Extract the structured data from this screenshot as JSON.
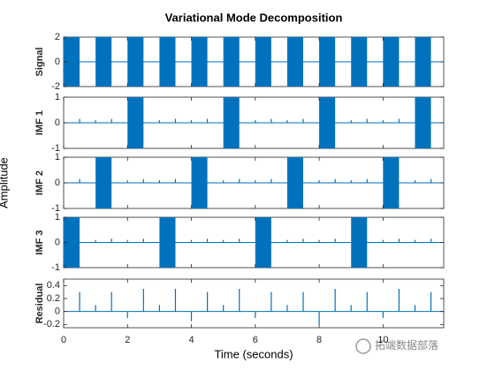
{
  "chart_data": {
    "type": "burst",
    "title": "Variational Mode Decomposition",
    "xlabel": "Time (seconds)",
    "ylabel": "Amplitude",
    "color": "#0072bd",
    "xlim": [
      0,
      11.9
    ],
    "xticks": [
      0,
      2,
      4,
      6,
      8,
      10
    ],
    "panels": [
      {
        "ylabel": "Signal",
        "ylim": [
          -2,
          2
        ],
        "yticks": [
          -2,
          0,
          2
        ],
        "bursts": [
          {
            "start": 0,
            "end": 0.5,
            "amplitude": 2
          },
          {
            "start": 1,
            "end": 1.5,
            "amplitude": 2
          },
          {
            "start": 2,
            "end": 2.5,
            "amplitude": 2
          },
          {
            "start": 3,
            "end": 3.5,
            "amplitude": 2
          },
          {
            "start": 4,
            "end": 4.5,
            "amplitude": 2
          },
          {
            "start": 5,
            "end": 5.5,
            "amplitude": 2
          },
          {
            "start": 6,
            "end": 6.5,
            "amplitude": 2
          },
          {
            "start": 7,
            "end": 7.5,
            "amplitude": 2
          },
          {
            "start": 8,
            "end": 8.5,
            "amplitude": 2
          },
          {
            "start": 9,
            "end": 9.5,
            "amplitude": 2
          },
          {
            "start": 10,
            "end": 10.5,
            "amplitude": 2
          },
          {
            "start": 11,
            "end": 11.5,
            "amplitude": 2
          }
        ]
      },
      {
        "ylabel": "IMF 1",
        "ylim": [
          -1,
          1
        ],
        "yticks": [
          -1,
          0,
          1
        ],
        "bursts": [
          {
            "start": 2,
            "end": 2.5,
            "amplitude": 1
          },
          {
            "start": 5,
            "end": 5.5,
            "amplitude": 1
          },
          {
            "start": 8,
            "end": 8.5,
            "amplitude": 1
          },
          {
            "start": 11,
            "end": 11.5,
            "amplitude": 1
          }
        ],
        "spikes": [
          {
            "x": 0.5,
            "value": 0.15
          },
          {
            "x": 1,
            "value": 0.1
          },
          {
            "x": 1.5,
            "value": 0.15
          },
          {
            "x": 3,
            "value": 0.1
          },
          {
            "x": 3.5,
            "value": 0.15
          },
          {
            "x": 4,
            "value": 0.1
          },
          {
            "x": 4.5,
            "value": 0.15
          },
          {
            "x": 6,
            "value": 0.1
          },
          {
            "x": 6.5,
            "value": 0.15
          },
          {
            "x": 7,
            "value": 0.1
          },
          {
            "x": 7.5,
            "value": 0.15
          },
          {
            "x": 9,
            "value": 0.1
          },
          {
            "x": 9.5,
            "value": 0.15
          },
          {
            "x": 10,
            "value": 0.1
          },
          {
            "x": 10.5,
            "value": 0.15
          }
        ]
      },
      {
        "ylabel": "IMF 2",
        "ylim": [
          -1,
          1
        ],
        "yticks": [
          -1,
          0,
          1
        ],
        "bursts": [
          {
            "start": 1,
            "end": 1.5,
            "amplitude": 1
          },
          {
            "start": 4,
            "end": 4.5,
            "amplitude": 1
          },
          {
            "start": 7,
            "end": 7.5,
            "amplitude": 1
          },
          {
            "start": 10,
            "end": 10.5,
            "amplitude": 1
          }
        ],
        "spikes": [
          {
            "x": 0.5,
            "value": 0.15
          },
          {
            "x": 2,
            "value": 0.1
          },
          {
            "x": 2.5,
            "value": 0.15
          },
          {
            "x": 3,
            "value": 0.1
          },
          {
            "x": 3.5,
            "value": 0.15
          },
          {
            "x": 5,
            "value": 0.1
          },
          {
            "x": 5.5,
            "value": 0.15
          },
          {
            "x": 6,
            "value": 0.1
          },
          {
            "x": 6.5,
            "value": 0.15
          },
          {
            "x": 8,
            "value": 0.1
          },
          {
            "x": 8.5,
            "value": 0.15
          },
          {
            "x": 9,
            "value": 0.1
          },
          {
            "x": 9.5,
            "value": 0.15
          },
          {
            "x": 11,
            "value": 0.1
          },
          {
            "x": 11.5,
            "value": 0.15
          }
        ]
      },
      {
        "ylabel": "IMF 3",
        "ylim": [
          -1,
          1
        ],
        "yticks": [
          -1,
          0,
          1
        ],
        "bursts": [
          {
            "start": 0,
            "end": 0.5,
            "amplitude": 1
          },
          {
            "start": 3,
            "end": 3.5,
            "amplitude": 1
          },
          {
            "start": 6,
            "end": 6.5,
            "amplitude": 1
          },
          {
            "start": 9,
            "end": 9.5,
            "amplitude": 1
          }
        ],
        "spikes": [
          {
            "x": 1,
            "value": 0.1
          },
          {
            "x": 1.5,
            "value": 0.15
          },
          {
            "x": 2,
            "value": 0.1
          },
          {
            "x": 2.5,
            "value": 0.15
          },
          {
            "x": 4,
            "value": 0.1
          },
          {
            "x": 4.5,
            "value": 0.15
          },
          {
            "x": 5,
            "value": 0.1
          },
          {
            "x": 5.5,
            "value": 0.15
          },
          {
            "x": 7,
            "value": 0.1
          },
          {
            "x": 7.5,
            "value": 0.15
          },
          {
            "x": 8,
            "value": 0.1
          },
          {
            "x": 8.5,
            "value": 0.15
          },
          {
            "x": 10,
            "value": 0.1
          },
          {
            "x": 10.5,
            "value": 0.15
          },
          {
            "x": 11,
            "value": 0.1
          },
          {
            "x": 11.5,
            "value": 0.15
          }
        ]
      },
      {
        "ylabel": "Residual",
        "ylim": [
          -0.25,
          0.5
        ],
        "yticks": [
          -0.2,
          0,
          0.2,
          0.4
        ],
        "spikes": [
          {
            "x": 0.5,
            "value": 0.3
          },
          {
            "x": 1,
            "value": 0.1
          },
          {
            "x": 1.5,
            "value": 0.3
          },
          {
            "x": 2,
            "value": -0.1
          },
          {
            "x": 2.5,
            "value": 0.35
          },
          {
            "x": 3,
            "value": 0.1
          },
          {
            "x": 3.5,
            "value": 0.35
          },
          {
            "x": 4,
            "value": -0.15
          },
          {
            "x": 4.5,
            "value": 0.3
          },
          {
            "x": 5,
            "value": 0.1
          },
          {
            "x": 5.5,
            "value": 0.35
          },
          {
            "x": 6,
            "value": -0.1
          },
          {
            "x": 6.5,
            "value": 0.3
          },
          {
            "x": 7,
            "value": 0.1
          },
          {
            "x": 7.5,
            "value": 0.3
          },
          {
            "x": 8,
            "value": -0.2
          },
          {
            "x": 8.5,
            "value": 0.35
          },
          {
            "x": 9,
            "value": 0.1
          },
          {
            "x": 9.5,
            "value": 0.3
          },
          {
            "x": 10,
            "value": -0.1
          },
          {
            "x": 10.5,
            "value": 0.35
          },
          {
            "x": 11,
            "value": 0.1
          },
          {
            "x": 11.5,
            "value": 0.3
          }
        ]
      }
    ]
  },
  "watermark": "拓端数据部落"
}
